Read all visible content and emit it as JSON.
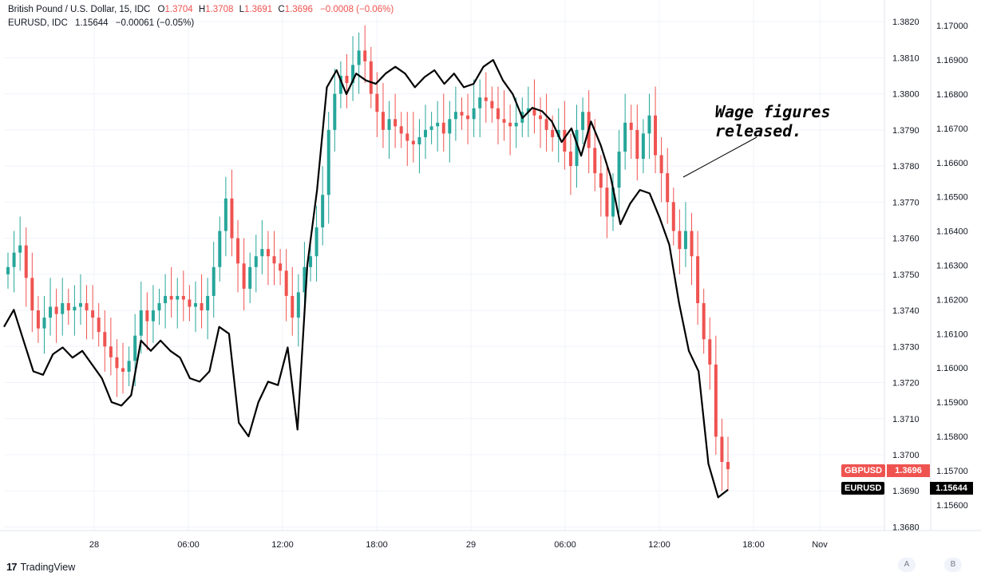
{
  "legend": {
    "symbol1": "British Pound / U.S. Dollar, 15, IDC",
    "o_lbl": "O",
    "o_val": "1.3704",
    "h_lbl": "H",
    "h_val": "1.3708",
    "l_lbl": "L",
    "l_val": "1.3691",
    "c_lbl": "C",
    "c_val": "1.3696",
    "change": "−0.0008 (−0.06%)",
    "symbol2": "EURUSD, IDC",
    "eur_val": "1.15644",
    "eur_change": "−0.00061 (−0.05%)"
  },
  "annotation": {
    "line1": "Wage figures",
    "line2": "released."
  },
  "badges": {
    "gbp_name": "GBPUSD",
    "gbp_value": "1.3696",
    "eur_name": "EURUSD",
    "eur_value": "1.15644"
  },
  "footer": {
    "brand": "TradingView",
    "logo": "17"
  },
  "scale_buttons": {
    "a": "A",
    "b": "B"
  },
  "colors": {
    "up": "#26a69a",
    "down": "#ef5350",
    "eur_line": "#000000",
    "grid": "#f0f3fa"
  },
  "chart_data": {
    "type": "candlestick+line",
    "series": [
      {
        "name": "British Pound / U.S. Dollar, 15, IDC",
        "axis": "left-scale"
      },
      {
        "name": "EURUSD, IDC",
        "axis": "right-scale"
      }
    ],
    "x_ticks": [
      "28",
      "06:00",
      "12:00",
      "18:00",
      "29",
      "06:00",
      "12:00",
      "18:00",
      "Nov"
    ],
    "gbp_axis_ticks": [
      "1.3820",
      "1.3810",
      "1.3800",
      "1.3790",
      "1.3780",
      "1.3770",
      "1.3760",
      "1.3750",
      "1.3740",
      "1.3730",
      "1.3720",
      "1.3710",
      "1.3700",
      "1.3690",
      "1.3680"
    ],
    "eur_axis_ticks": [
      "1.17000",
      "1.16900",
      "1.16800",
      "1.16700",
      "1.16600",
      "1.16500",
      "1.16400",
      "1.16300",
      "1.16200",
      "1.16100",
      "1.16000",
      "1.15900",
      "1.15800",
      "1.15700",
      "1.15600"
    ],
    "gbp_ylim": [
      1.3679,
      1.3826
    ],
    "eur_ylim": [
      1.15525,
      1.17075
    ],
    "gbp_close_path": [
      1.3752,
      1.3756,
      1.3758,
      1.3749,
      1.374,
      1.3735,
      1.3738,
      1.3741,
      1.3739,
      1.3742,
      1.374,
      1.3741,
      1.3742,
      1.374,
      1.3738,
      1.3734,
      1.373,
      1.3727,
      1.3724,
      1.3723,
      1.3726,
      1.3733,
      1.374,
      1.3737,
      1.374,
      1.3742,
      1.3744,
      1.3743,
      1.3744,
      1.3743,
      1.3741,
      1.3742,
      1.374,
      1.3744,
      1.3752,
      1.3762,
      1.3771,
      1.376,
      1.3753,
      1.3746,
      1.3752,
      1.3755,
      1.3757,
      1.3755,
      1.3753,
      1.3751,
      1.3744,
      1.3738,
      1.3745,
      1.3752,
      1.3755,
      1.3763,
      1.3772,
      1.379,
      1.38,
      1.3805,
      1.3803,
      1.3808,
      1.3812,
      1.3809,
      1.38,
      1.3795,
      1.379,
      1.3793,
      1.3791,
      1.3789,
      1.3787,
      1.3786,
      1.3788,
      1.379,
      1.3791,
      1.3792,
      1.3789,
      1.3793,
      1.3795,
      1.3794,
      1.3793,
      1.3796,
      1.3799,
      1.3798,
      1.3796,
      1.3793,
      1.3792,
      1.3791,
      1.3792,
      1.3795,
      1.3796,
      1.3794,
      1.3793,
      1.379,
      1.3788,
      1.379,
      1.3784,
      1.378,
      1.379,
      1.3795,
      1.3785,
      1.3778,
      1.3774,
      1.3766,
      1.3774,
      1.3784,
      1.3792,
      1.379,
      1.3782,
      1.3789,
      1.3794,
      1.3783,
      1.3778,
      1.377,
      1.3762,
      1.3757,
      1.3762,
      1.3755,
      1.3742,
      1.3732,
      1.3725,
      1.3705,
      1.3698,
      1.3696
    ],
    "eur_line_path": [
      1.1612,
      1.1617,
      1.1608,
      1.1599,
      1.1598,
      1.1604,
      1.1606,
      1.1603,
      1.1605,
      1.1601,
      1.1597,
      1.159,
      1.1589,
      1.1592,
      1.1608,
      1.1605,
      1.1608,
      1.1605,
      1.1603,
      1.1597,
      1.1596,
      1.1599,
      1.1612,
      1.161,
      1.1584,
      1.158,
      1.159,
      1.1596,
      1.1595,
      1.1606,
      1.1582,
      1.163,
      1.1652,
      1.1682,
      1.1687,
      1.168,
      1.1686,
      1.1684,
      1.1683,
      1.1686,
      1.1688,
      1.1686,
      1.1682,
      1.1685,
      1.1687,
      1.1683,
      1.1686,
      1.1682,
      1.1683,
      1.1688,
      1.169,
      1.1684,
      1.168,
      1.1673,
      1.1676,
      1.1675,
      1.1672,
      1.1666,
      1.167,
      1.1662,
      1.1672,
      1.1665,
      1.1656,
      1.1642,
      1.1648,
      1.1652,
      1.1651,
      1.1644,
      1.1636,
      1.1619,
      1.1605,
      1.1599,
      1.1572,
      1.15622,
      1.15644
    ]
  }
}
